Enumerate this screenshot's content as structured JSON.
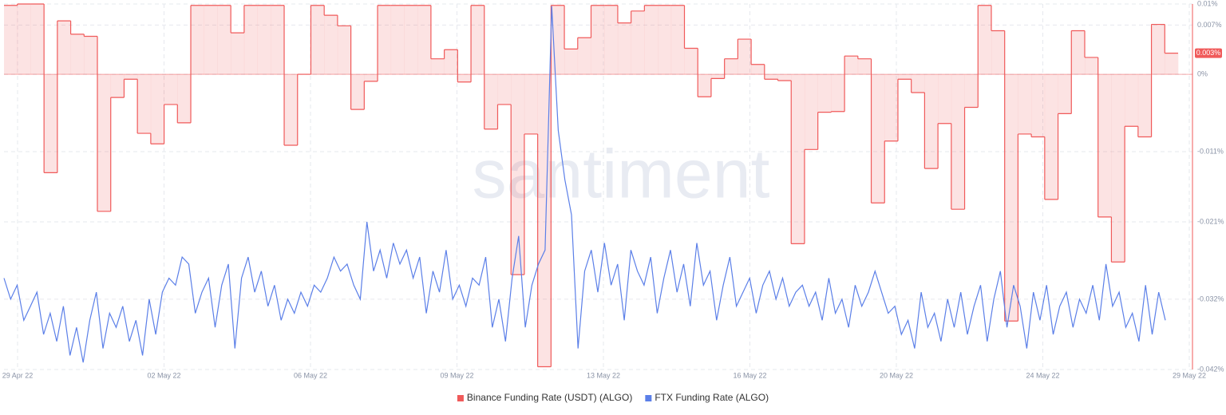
{
  "chart_data": {
    "type": "line",
    "watermark": "santiment",
    "x_labels": [
      "29 Apr 22",
      "02 May 22",
      "06 May 22",
      "09 May 22",
      "13 May 22",
      "16 May 22",
      "20 May 22",
      "24 May 22",
      "29 May 22"
    ],
    "ylim": [
      -0.042,
      0.01
    ],
    "yticks": [
      {
        "value": 0.01,
        "label": "0.01%"
      },
      {
        "value": 0.007,
        "label": "0.007%"
      },
      {
        "value": 0,
        "label": "0%"
      },
      {
        "value": -0.011,
        "label": "-0.011%"
      },
      {
        "value": -0.021,
        "label": "-0.021%"
      },
      {
        "value": -0.032,
        "label": "-0.032%"
      },
      {
        "value": -0.042,
        "label": "-0.042%"
      }
    ],
    "grid": true,
    "series": [
      {
        "name": "Binance Funding Rate (USDT) (ALGO)",
        "color": "#f05a5a",
        "style": "step-area",
        "current_value_label": "0.003%",
        "values": [
          0.0098,
          0.01,
          0.01,
          -0.014,
          0.0076,
          0.0057,
          0.0054,
          -0.0195,
          -0.0033,
          -0.0007,
          -0.0084,
          -0.0099,
          -0.0043,
          -0.0069,
          0.0098,
          0.0098,
          0.0098,
          0.0059,
          0.0098,
          0.0098,
          0.0098,
          -0.0101,
          0,
          0.0098,
          0.0084,
          0.0069,
          -0.005,
          -0.001,
          0.0098,
          0.0098,
          0.0098,
          0.0098,
          0.0022,
          0.0035,
          -0.0011,
          0.0098,
          -0.0078,
          -0.0043,
          -0.0285,
          -0.0085,
          -0.0416,
          0.0098,
          0.0036,
          0.0052,
          0.0098,
          0.0098,
          0.0073,
          0.009,
          0.0098,
          0.0098,
          0.0098,
          0.0037,
          -0.0032,
          -0.0006,
          0.0022,
          0.005,
          0.0014,
          -0.0007,
          -0.0009,
          -0.0241,
          -0.0107,
          -0.0054,
          -0.0053,
          0.0026,
          0.0022,
          -0.0183,
          -0.0095,
          -0.0007,
          -0.0026,
          -0.0134,
          -0.007,
          -0.0192,
          -0.0047,
          0.0098,
          0.0062,
          -0.0351,
          -0.0085,
          -0.0089,
          -0.0178,
          -0.0056,
          0.0062,
          0.0024,
          -0.0203,
          -0.0267,
          -0.0074,
          -0.0089,
          0.0071,
          0.003
        ]
      },
      {
        "name": "FTX Funding Rate (ALGO)",
        "color": "#5b7fe8",
        "style": "line",
        "values": [
          -0.029,
          -0.032,
          -0.03,
          -0.035,
          -0.033,
          -0.031,
          -0.037,
          -0.034,
          -0.038,
          -0.033,
          -0.04,
          -0.036,
          -0.041,
          -0.035,
          -0.031,
          -0.039,
          -0.034,
          -0.036,
          -0.033,
          -0.038,
          -0.035,
          -0.04,
          -0.032,
          -0.037,
          -0.031,
          -0.029,
          -0.03,
          -0.026,
          -0.027,
          -0.034,
          -0.031,
          -0.029,
          -0.036,
          -0.03,
          -0.027,
          -0.039,
          -0.029,
          -0.026,
          -0.031,
          -0.028,
          -0.033,
          -0.03,
          -0.035,
          -0.032,
          -0.034,
          -0.031,
          -0.033,
          -0.03,
          -0.031,
          -0.029,
          -0.026,
          -0.028,
          -0.027,
          -0.03,
          -0.032,
          -0.021,
          -0.028,
          -0.025,
          -0.029,
          -0.024,
          -0.027,
          -0.025,
          -0.029,
          -0.026,
          -0.034,
          -0.028,
          -0.031,
          -0.025,
          -0.032,
          -0.03,
          -0.033,
          -0.029,
          -0.03,
          -0.026,
          -0.036,
          -0.032,
          -0.038,
          -0.029,
          -0.023,
          -0.036,
          -0.03,
          -0.027,
          -0.025,
          0.0097,
          -0.008,
          -0.015,
          -0.02,
          -0.039,
          -0.028,
          -0.025,
          -0.031,
          -0.024,
          -0.03,
          -0.027,
          -0.035,
          -0.025,
          -0.028,
          -0.03,
          -0.026,
          -0.034,
          -0.029,
          -0.025,
          -0.031,
          -0.027,
          -0.033,
          -0.024,
          -0.03,
          -0.028,
          -0.035,
          -0.03,
          -0.026,
          -0.033,
          -0.031,
          -0.029,
          -0.034,
          -0.03,
          -0.028,
          -0.032,
          -0.029,
          -0.033,
          -0.031,
          -0.03,
          -0.033,
          -0.031,
          -0.035,
          -0.029,
          -0.034,
          -0.032,
          -0.036,
          -0.03,
          -0.033,
          -0.031,
          -0.028,
          -0.031,
          -0.034,
          -0.033,
          -0.037,
          -0.035,
          -0.039,
          -0.031,
          -0.036,
          -0.034,
          -0.038,
          -0.032,
          -0.036,
          -0.031,
          -0.037,
          -0.033,
          -0.03,
          -0.038,
          -0.032,
          -0.028,
          -0.036,
          -0.03,
          -0.033,
          -0.039,
          -0.031,
          -0.035,
          -0.03,
          -0.037,
          -0.033,
          -0.031,
          -0.036,
          -0.032,
          -0.034,
          -0.03,
          -0.035,
          -0.027,
          -0.033,
          -0.031,
          -0.036,
          -0.034,
          -0.038,
          -0.03,
          -0.037,
          -0.031,
          -0.035
        ]
      }
    ]
  }
}
